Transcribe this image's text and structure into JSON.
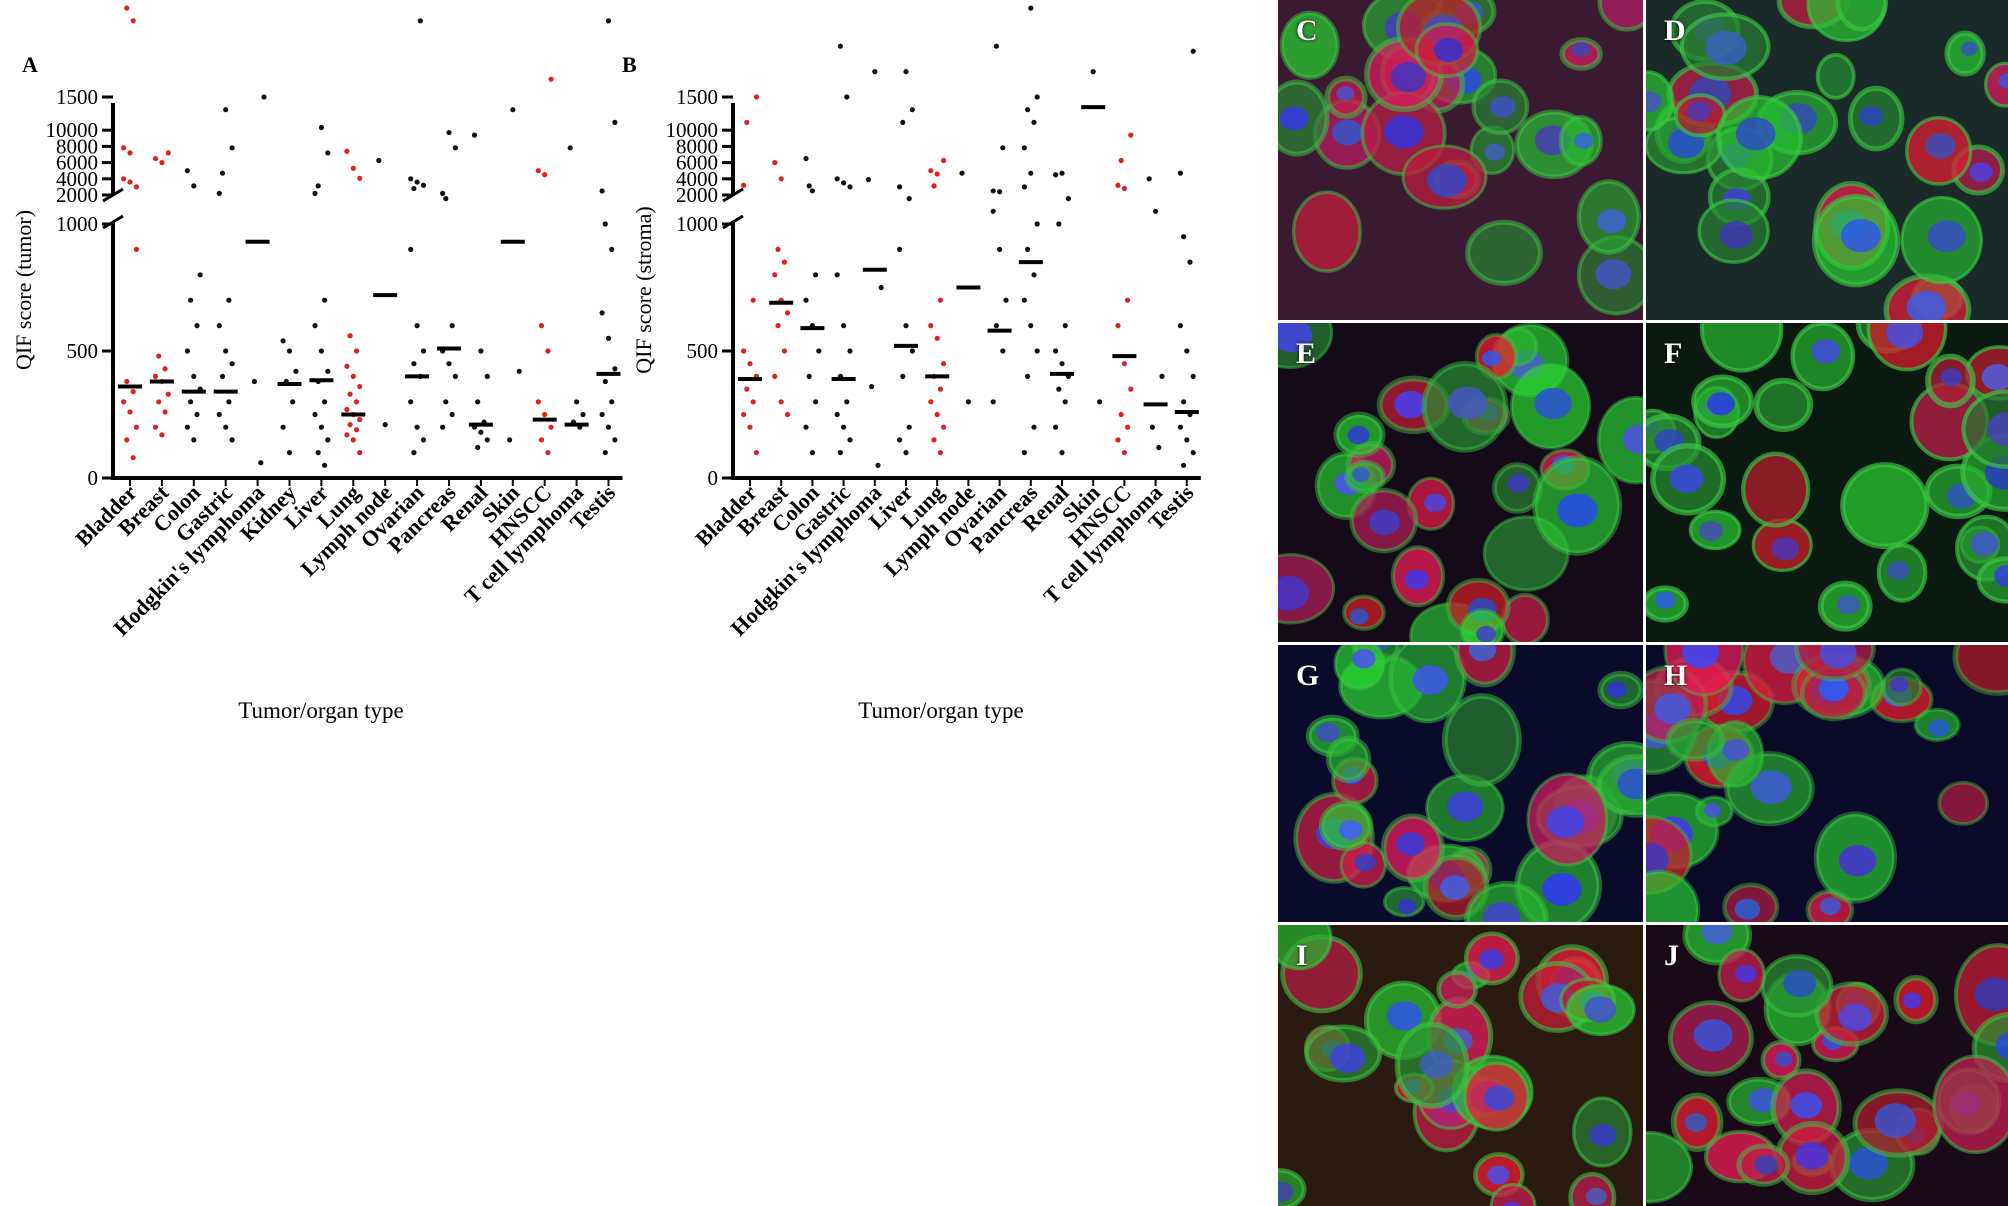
{
  "chart_data": [
    {
      "panel_label": "A",
      "type": "scatter",
      "ylabel": "QIF score (tumor)",
      "xlabel": "Tumor/organ type",
      "y_axis": "broken",
      "ylim_lower": [
        0,
        2000
      ],
      "lower_ticks": [
        0,
        500,
        1000,
        1500,
        2000
      ],
      "ylim_upper": [
        2000,
        10000
      ],
      "upper_ticks": [
        2000,
        4000,
        6000,
        8000,
        10000
      ],
      "categories": [
        "Bladder",
        "Breast",
        "Colon",
        "Gastric",
        "Hodgkin's lymphoma",
        "Kidney",
        "Liver",
        "Lung",
        "Lymph node",
        "Ovarian",
        "Pancreas",
        "Renal",
        "Skin",
        "HNSCC",
        "T cell lymphoma",
        "Testis"
      ],
      "highlight": [
        "Bladder",
        "Breast",
        "Lung",
        "HNSCC"
      ],
      "colors": {
        "highlight": "#e0201c",
        "default": "#111111",
        "median": "#000000"
      },
      "medians": [
        360,
        380,
        340,
        340,
        930,
        370,
        385,
        250,
        720,
        400,
        510,
        210,
        930,
        230,
        210,
        410
      ],
      "points": [
        [
          4000,
          3600,
          3000,
          1850,
          1800,
          1300,
          1280,
          900,
          380,
          340,
          300,
          260,
          200,
          150,
          80
        ],
        [
          6500,
          6000,
          1280,
          480,
          430,
          400,
          380,
          330,
          300,
          260,
          200,
          170
        ],
        [
          5000,
          1150,
          800,
          700,
          600,
          500,
          400,
          350,
          300,
          250,
          200,
          150
        ],
        [
          2200,
          1450,
          1300,
          1200,
          700,
          600,
          500,
          450,
          400,
          300,
          250,
          200,
          150
        ],
        [
          1900,
          1900,
          1500,
          380,
          60
        ],
        [
          540,
          500,
          420,
          380,
          300,
          200,
          100
        ],
        [
          2200,
          1380,
          1280,
          1150,
          700,
          600,
          500,
          420,
          380,
          300,
          250,
          200,
          150,
          100,
          50
        ],
        [
          7400,
          5300,
          1180,
          560,
          500,
          440,
          400,
          360,
          330,
          300,
          270,
          250,
          230,
          210,
          190,
          170,
          150,
          100
        ],
        [
          1250,
          210
        ],
        [
          4000,
          3600,
          3200,
          2800,
          1800,
          900,
          600,
          500,
          450,
          400,
          300,
          200,
          150,
          100
        ],
        [
          2200,
          1360,
          1300,
          1100,
          600,
          500,
          450,
          400,
          300,
          250,
          200
        ],
        [
          1350,
          500,
          400,
          300,
          220,
          200,
          180,
          150,
          120
        ],
        [
          2000,
          1450,
          420,
          150
        ],
        [
          5000,
          4500,
          1570,
          600,
          500,
          300,
          250,
          200,
          150,
          100
        ],
        [
          1300,
          300,
          250,
          220,
          200
        ],
        [
          2500,
          1800,
          1400,
          1000,
          900,
          650,
          550,
          430,
          380,
          300,
          250,
          200,
          150,
          100
        ]
      ]
    },
    {
      "panel_label": "B",
      "type": "scatter",
      "ylabel": "QIF score (stroma)",
      "xlabel": "Tumor/organ type",
      "y_axis": "broken",
      "ylim_lower": [
        0,
        2000
      ],
      "lower_ticks": [
        0,
        500,
        1000,
        1500,
        2000
      ],
      "ylim_upper": [
        2000,
        10000
      ],
      "upper_ticks": [
        2000,
        4000,
        6000,
        8000,
        10000
      ],
      "categories": [
        "Bladder",
        "Breast",
        "Colon",
        "Gastric",
        "Hodgkin's lymphoma",
        "Liver",
        "Lung",
        "Lymph node",
        "Ovarian",
        "Pancreas",
        "Renal",
        "Skin",
        "HNSCC",
        "T cell lymphoma",
        "Testis"
      ],
      "highlight": [
        "Bladder",
        "Breast",
        "Lung",
        "HNSCC"
      ],
      "colors": {
        "highlight": "#e0201c",
        "default": "#111111",
        "median": "#000000"
      },
      "medians": [
        390,
        690,
        590,
        390,
        820,
        520,
        400,
        750,
        580,
        850,
        410,
        1460,
        480,
        290,
        260
      ],
      "points": [
        [
          3200,
          2000,
          1500,
          1400,
          700,
          500,
          450,
          400,
          350,
          300,
          250,
          200,
          100
        ],
        [
          6000,
          4000,
          1900,
          900,
          850,
          800,
          700,
          650,
          600,
          500,
          400,
          300,
          250
        ],
        [
          6500,
          2500,
          2000,
          1150,
          800,
          700,
          600,
          500,
          400,
          300,
          200,
          100
        ],
        [
          4000,
          3500,
          3000,
          1700,
          1500,
          800,
          600,
          500,
          400,
          300,
          250,
          200,
          150,
          100
        ],
        [
          3900,
          1600,
          750,
          360,
          50
        ],
        [
          3000,
          1600,
          1450,
          1400,
          1100,
          900,
          600,
          500,
          400,
          200,
          150,
          100
        ],
        [
          5000,
          4600,
          1250,
          1150,
          700,
          600,
          550,
          450,
          400,
          350,
          300,
          250,
          200,
          150,
          100
        ],
        [
          1200,
          300
        ],
        [
          2500,
          2400,
          2000,
          1700,
          1300,
          1050,
          900,
          700,
          600,
          500,
          300
        ],
        [
          3000,
          1850,
          1500,
          1450,
          1400,
          1300,
          1200,
          1000,
          900,
          800,
          700,
          600,
          500,
          400,
          200,
          100
        ],
        [
          4500,
          1200,
          1100,
          1000,
          600,
          500,
          450,
          400,
          350,
          300,
          200,
          100
        ],
        [
          1900,
          1600,
          300
        ],
        [
          3200,
          2800,
          1350,
          1250,
          700,
          600,
          450,
          350,
          250,
          200,
          150,
          100
        ],
        [
          4000,
          1050,
          400,
          200,
          120
        ],
        [
          4700,
          1950,
          1680,
          950,
          850,
          600,
          500,
          400,
          300,
          250,
          200,
          150,
          100,
          50
        ]
      ]
    }
  ],
  "micrographs": [
    {
      "label": "C"
    },
    {
      "label": "D"
    },
    {
      "label": "E"
    },
    {
      "label": "F"
    },
    {
      "label": "G"
    },
    {
      "label": "H"
    },
    {
      "label": "I"
    },
    {
      "label": "J"
    }
  ]
}
